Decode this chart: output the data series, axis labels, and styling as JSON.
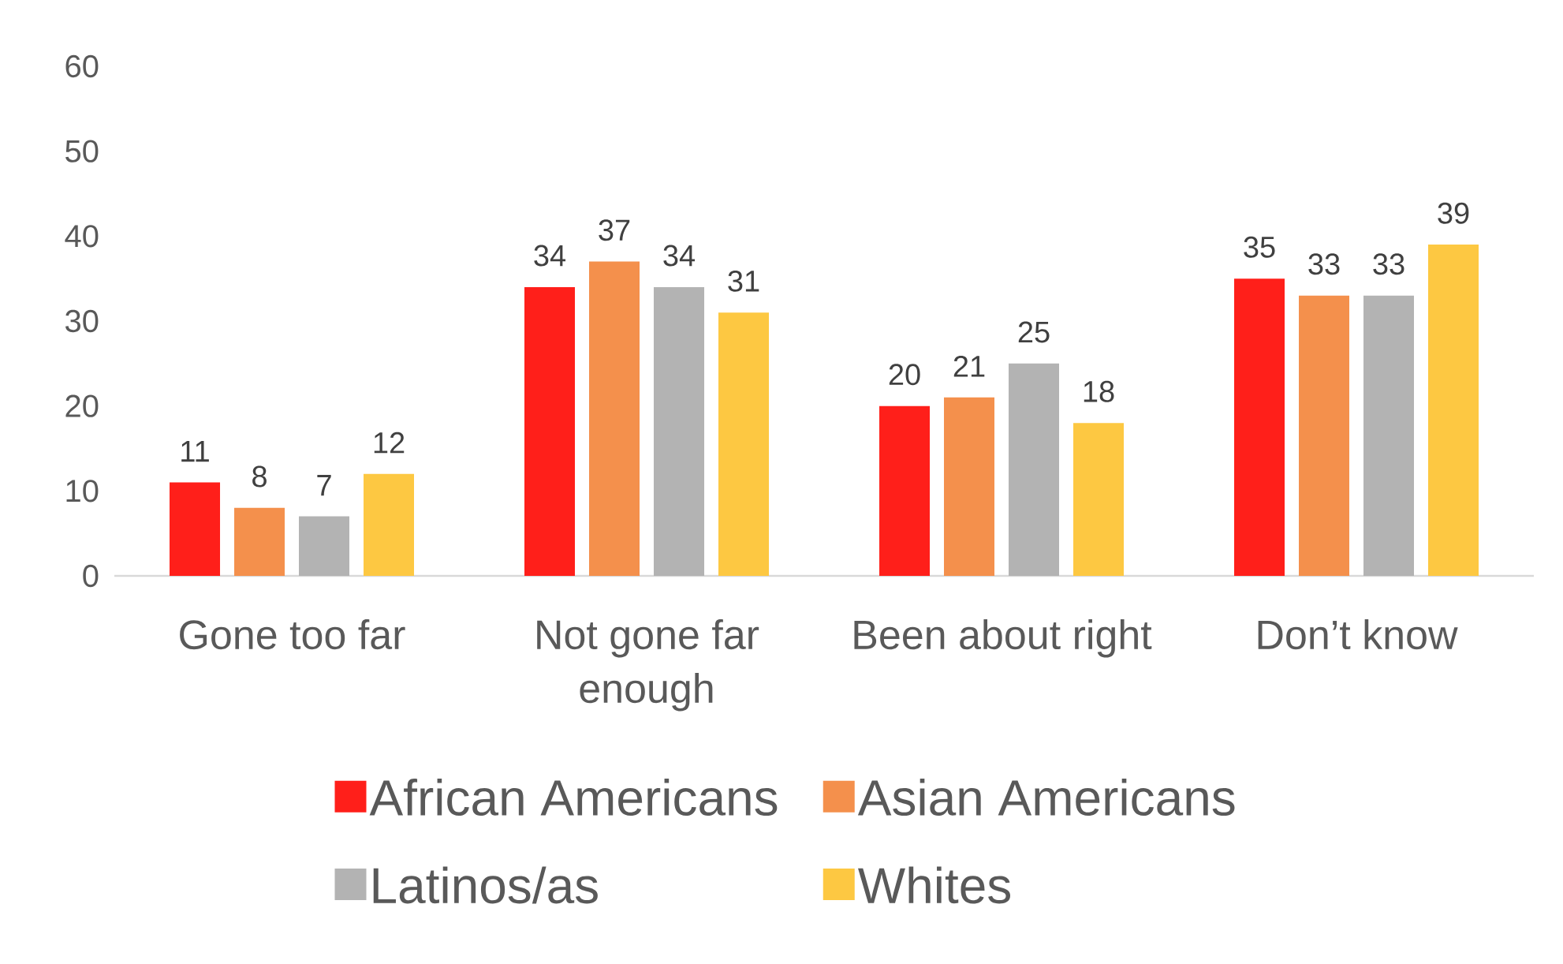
{
  "chart_data": {
    "type": "bar",
    "categories": [
      "Gone too far",
      "Not gone far enough",
      "Been about right",
      "Don’t know"
    ],
    "series": [
      {
        "name": "African Americans",
        "color": "#ff1f1a",
        "values": [
          11,
          34,
          20,
          35
        ]
      },
      {
        "name": "Asian Americans",
        "color": "#f4904c",
        "values": [
          8,
          37,
          21,
          33
        ]
      },
      {
        "name": "Latinos/as",
        "color": "#b3b3b3",
        "values": [
          7,
          34,
          25,
          33
        ]
      },
      {
        "name": "Whites",
        "color": "#fdc842",
        "values": [
          12,
          31,
          18,
          39
        ]
      }
    ],
    "ylim": [
      0,
      60
    ],
    "yticks": [
      0,
      10,
      20,
      30,
      40,
      50,
      60
    ],
    "data_labels": true,
    "legend": "bottom",
    "grid": false
  }
}
